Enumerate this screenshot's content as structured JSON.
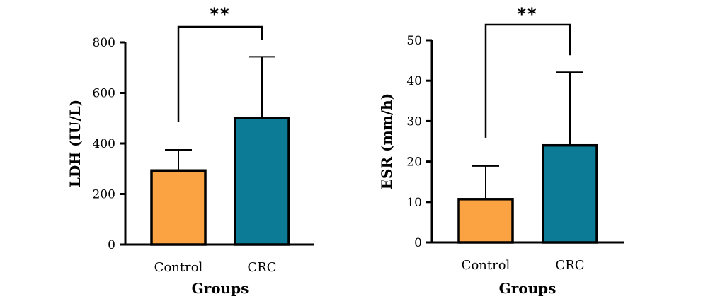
{
  "chart_data": [
    {
      "type": "bar",
      "categories": [
        "Control",
        "CRC"
      ],
      "values": [
        293,
        501
      ],
      "error": [
        82,
        242
      ],
      "colors": [
        "#fba343",
        "#0c7c96"
      ],
      "xlabel": "Groups",
      "ylabel": "LDH (IU/L)",
      "ylim": [
        0,
        800
      ],
      "yticks": [
        "0",
        "200",
        "400",
        "600",
        "800"
      ],
      "significance": "**",
      "grid": false
    },
    {
      "type": "bar",
      "categories": [
        "Control",
        "CRC"
      ],
      "values": [
        10.7,
        24
      ],
      "error": [
        8.2,
        18.1
      ],
      "colors": [
        "#fba343",
        "#0c7c96"
      ],
      "xlabel": "Groups",
      "ylabel": "ESR (mm/h)",
      "ylim": [
        0,
        50
      ],
      "yticks": [
        "0",
        "10",
        "20",
        "30",
        "40",
        "50"
      ],
      "significance": "**",
      "grid": false
    }
  ]
}
